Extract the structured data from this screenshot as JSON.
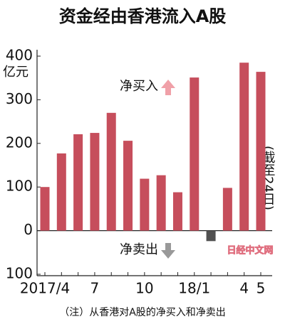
{
  "chart_data": {
    "type": "bar",
    "title": "资金经由香港流入A股",
    "y_unit": "亿元",
    "categories": [
      "2017/4",
      null,
      null,
      "7",
      null,
      null,
      "10",
      null,
      null,
      "18/1",
      null,
      null,
      "4",
      "5"
    ],
    "values": [
      100,
      177,
      221,
      224,
      270,
      206,
      119,
      127,
      88,
      351,
      -24,
      98,
      385,
      364
    ],
    "color": "#c64e5c",
    "negative_color": "#505050",
    "ylim": [
      -100,
      400
    ],
    "yticks": [
      {
        "value": -100,
        "label": "100"
      },
      0,
      100,
      200,
      300,
      400
    ],
    "grid": false,
    "annotations": {
      "buy": "净买入",
      "sell": "净卖出",
      "asof": "(截至24日)",
      "watermark": "日经中文网"
    },
    "note": "（注）从香港对A股的净买入和净卖出"
  }
}
